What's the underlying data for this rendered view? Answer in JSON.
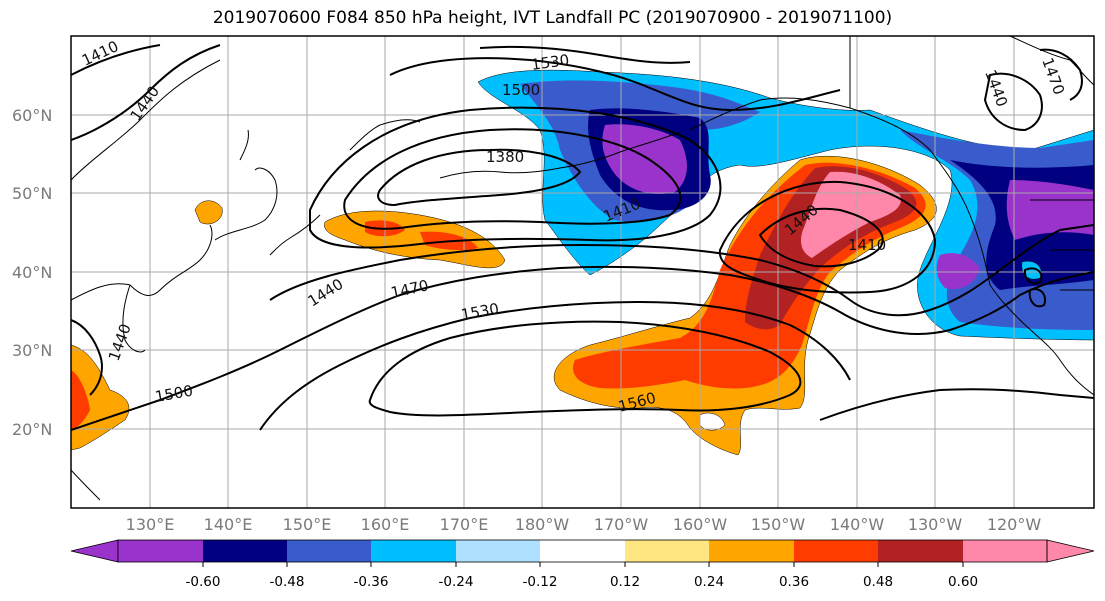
{
  "title": "2019070600 F084 850 hPa height, IVT Landfall PC (2019070900 - 2019071100)",
  "latitude_labels": [
    "60°N",
    "50°N",
    "40°N",
    "30°N",
    "20°N"
  ],
  "longitude_labels": [
    "130°E",
    "140°E",
    "150°E",
    "160°E",
    "170°E",
    "180°W",
    "170°W",
    "160°W",
    "150°W",
    "140°W",
    "130°W",
    "120°W"
  ],
  "contour_labels": [
    "1410",
    "1440",
    "1530",
    "1500",
    "1380",
    "1410",
    "1440",
    "1410",
    "1440",
    "1470",
    "1440",
    "1470",
    "1530",
    "1440",
    "1500",
    "1560"
  ],
  "colorbar": {
    "tick_labels": [
      "-0.60",
      "-0.48",
      "-0.36",
      "-0.24",
      "-0.12",
      "0.12",
      "0.24",
      "0.36",
      "0.48",
      "0.60"
    ],
    "colors": [
      "#9933cc",
      "#000080",
      "#3a5bcc",
      "#00bfff",
      "#b0e0ff",
      "#ffffff",
      "#ffe680",
      "#ffa500",
      "#ff3c00",
      "#b22222",
      "#ff88aa"
    ]
  },
  "shading_colors": {
    "neg_060": "#9933cc",
    "neg_048": "#000080",
    "neg_036": "#3a5bcc",
    "neg_024": "#00bfff",
    "pos_024": "#ffa500",
    "pos_036": "#ff3c00",
    "pos_048": "#b22222",
    "pos_060": "#ff88aa"
  }
}
